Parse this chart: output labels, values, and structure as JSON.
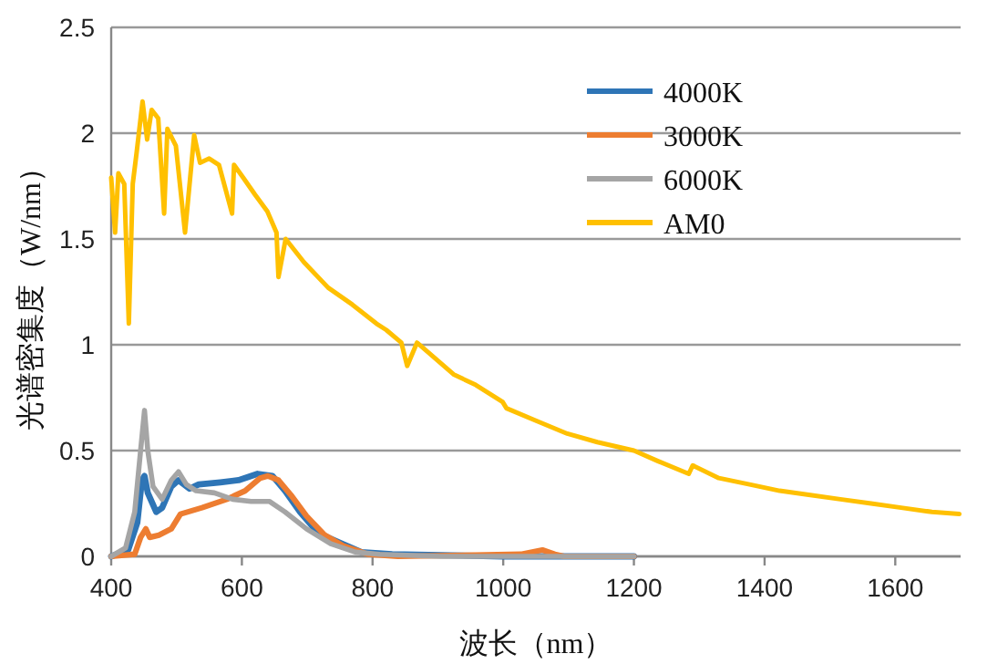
{
  "chart_data": {
    "type": "line",
    "xlabel": "波长（nm）",
    "ylabel": "光谱密集度（W/nm）",
    "xlim": [
      400,
      1700
    ],
    "ylim": [
      0,
      2.5
    ],
    "xticks": [
      400,
      600,
      800,
      1000,
      1200,
      1400,
      1600
    ],
    "yticks": [
      0,
      0.5,
      1,
      1.5,
      2,
      2.5
    ],
    "grid": "y",
    "legend": "top right",
    "series": [
      {
        "name": "4000K",
        "color": "#2e75b6",
        "x": [
          400,
          426,
          440,
          447,
          451,
          456,
          469,
          478,
          492,
          503,
          520,
          534,
          567,
          595,
          624,
          647,
          666,
          689,
          717,
          746,
          783,
          830,
          999,
          1200
        ],
        "values": [
          0,
          0.03,
          0.16,
          0.36,
          0.38,
          0.3,
          0.21,
          0.23,
          0.33,
          0.36,
          0.32,
          0.34,
          0.35,
          0.36,
          0.39,
          0.38,
          0.31,
          0.21,
          0.11,
          0.07,
          0.02,
          0.01,
          0,
          0
        ]
      },
      {
        "name": "3000K",
        "color": "#ed7d31",
        "x": [
          400,
          436,
          445,
          453,
          459,
          473,
          492,
          506,
          539,
          577,
          605,
          628,
          640,
          656,
          675,
          699,
          727,
          755,
          793,
          839,
          1027,
          1060,
          1079,
          1093,
          1200
        ],
        "values": [
          0,
          0.01,
          0.09,
          0.13,
          0.09,
          0.1,
          0.13,
          0.2,
          0.23,
          0.27,
          0.31,
          0.37,
          0.38,
          0.36,
          0.29,
          0.19,
          0.1,
          0.05,
          0.01,
          0,
          0.01,
          0.03,
          0.01,
          0,
          0
        ]
      },
      {
        "name": "6000K",
        "color": "#a5a5a5",
        "x": [
          400,
          422,
          436,
          445,
          451,
          456,
          464,
          478,
          492,
          503,
          515,
          530,
          558,
          586,
          614,
          642,
          666,
          699,
          736,
          774,
          811,
          905,
          1200
        ],
        "values": [
          0,
          0.04,
          0.21,
          0.5,
          0.69,
          0.5,
          0.33,
          0.27,
          0.36,
          0.4,
          0.34,
          0.31,
          0.3,
          0.27,
          0.26,
          0.26,
          0.21,
          0.13,
          0.06,
          0.02,
          0.01,
          0,
          0
        ]
      },
      {
        "name": "AM0",
        "color": "#ffc000",
        "x": [
          400,
          406,
          411,
          420,
          427,
          433,
          439,
          448,
          455,
          462,
          472,
          481,
          486,
          499,
          513,
          527,
          536,
          550,
          565,
          585,
          588,
          602,
          620,
          639,
          653,
          656,
          667,
          695,
          732,
          769,
          806,
          821,
          844,
          853,
          868,
          924,
          958,
          999,
          1005,
          1051,
          1098,
          1144,
          1200,
          1237,
          1284,
          1290,
          1330,
          1377,
          1423,
          1470,
          1516,
          1563,
          1609,
          1656,
          1698
        ],
        "values": [
          1.79,
          1.53,
          1.81,
          1.76,
          1.1,
          1.76,
          1.91,
          2.15,
          1.97,
          2.11,
          2.07,
          1.62,
          2.02,
          1.94,
          1.53,
          1.99,
          1.86,
          1.88,
          1.85,
          1.62,
          1.85,
          1.79,
          1.71,
          1.63,
          1.53,
          1.32,
          1.5,
          1.39,
          1.27,
          1.19,
          1.1,
          1.07,
          1.01,
          0.9,
          1.01,
          0.86,
          0.81,
          0.73,
          0.7,
          0.64,
          0.58,
          0.54,
          0.5,
          0.45,
          0.39,
          0.43,
          0.37,
          0.34,
          0.31,
          0.29,
          0.27,
          0.25,
          0.23,
          0.21,
          0.2
        ]
      }
    ]
  }
}
